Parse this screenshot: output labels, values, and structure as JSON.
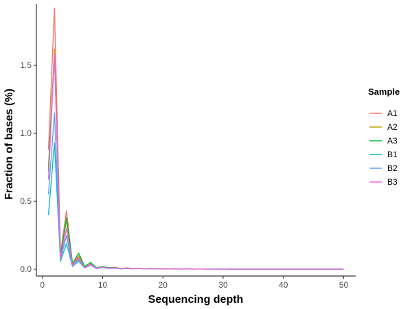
{
  "chart_data": {
    "type": "line",
    "xlabel": "Sequencing depth",
    "ylabel": "Fraction of bases (%)",
    "xlim": [
      -1,
      52
    ],
    "ylim": [
      -0.05,
      1.95
    ],
    "x_ticks": [
      0,
      10,
      20,
      30,
      40,
      50
    ],
    "y_ticks": [
      0.0,
      0.5,
      1.0,
      1.5
    ],
    "y_tick_labels": [
      "0.0",
      "0.5",
      "1.0",
      "1.5"
    ],
    "x_tick_labels": [
      "0",
      "10",
      "20",
      "30",
      "40",
      "50"
    ],
    "grid": false,
    "legend": {
      "title": "Sample",
      "position": "right"
    },
    "series": [
      {
        "name": "A1",
        "color": "#F8766D",
        "x": [
          1,
          2,
          3,
          4,
          5,
          6,
          7,
          8,
          9,
          10,
          11,
          12,
          13,
          14,
          15,
          16,
          17,
          18,
          19,
          20,
          21,
          22,
          23,
          24,
          25,
          26,
          27,
          28,
          29,
          30,
          31,
          32,
          33,
          34,
          35,
          36,
          37,
          38,
          39,
          40,
          41,
          42,
          43,
          44,
          45,
          46,
          47,
          48,
          49,
          50
        ],
        "y": [
          0.88,
          1.92,
          0.12,
          0.43,
          0.04,
          0.1,
          0.02,
          0.04,
          0.01,
          0.02,
          0.01,
          0.015,
          0.005,
          0.01,
          0.005,
          0.008,
          0.004,
          0.006,
          0.003,
          0.005,
          0.003,
          0.004,
          0.002,
          0.003,
          0.002,
          0.003,
          0.002,
          0.002,
          0.002,
          0.002,
          0.001,
          0.002,
          0.001,
          0.001,
          0.001,
          0.001,
          0.001,
          0.001,
          0.001,
          0.001,
          0.001,
          0.001,
          0.001,
          0.001,
          0.001,
          0.001,
          0.001,
          0.001,
          0.001,
          0.001
        ]
      },
      {
        "name": "A2",
        "color": "#B79F00",
        "x": [
          1,
          2,
          3,
          4,
          5,
          6,
          7,
          8,
          9,
          10,
          11,
          12,
          13,
          14,
          15,
          16,
          17,
          18,
          19,
          20,
          21,
          22,
          23,
          24,
          25,
          26,
          27,
          28,
          29,
          30,
          31,
          32,
          33,
          34,
          35,
          36,
          37,
          38,
          39,
          40,
          41,
          42,
          43,
          44,
          45,
          46,
          47,
          48,
          49,
          50
        ],
        "y": [
          0.75,
          1.62,
          0.1,
          0.36,
          0.03,
          0.09,
          0.015,
          0.035,
          0.008,
          0.018,
          0.008,
          0.012,
          0.004,
          0.008,
          0.004,
          0.007,
          0.003,
          0.005,
          0.003,
          0.004,
          0.002,
          0.003,
          0.002,
          0.003,
          0.002,
          0.002,
          0.002,
          0.002,
          0.001,
          0.002,
          0.001,
          0.001,
          0.001,
          0.001,
          0.001,
          0.001,
          0.001,
          0.001,
          0.001,
          0.001,
          0.001,
          0.001,
          0.001,
          0.001,
          0.001,
          0.001,
          0.001,
          0.001,
          0.001,
          0.001
        ]
      },
      {
        "name": "A3",
        "color": "#00BA38",
        "x": [
          1,
          2,
          3,
          4,
          5,
          6,
          7,
          8,
          9,
          10,
          11,
          12,
          13,
          14,
          15,
          16,
          17,
          18,
          19,
          20,
          21,
          22,
          23,
          24,
          25,
          26,
          27,
          28,
          29,
          30,
          31,
          32,
          33,
          34,
          35,
          36,
          37,
          38,
          39,
          40,
          41,
          42,
          43,
          44,
          45,
          46,
          47,
          48,
          49,
          50
        ],
        "y": [
          0.72,
          1.58,
          0.1,
          0.38,
          0.04,
          0.12,
          0.02,
          0.05,
          0.01,
          0.02,
          0.01,
          0.012,
          0.005,
          0.008,
          0.004,
          0.007,
          0.003,
          0.005,
          0.003,
          0.004,
          0.002,
          0.003,
          0.002,
          0.003,
          0.002,
          0.002,
          0.002,
          0.002,
          0.001,
          0.002,
          0.001,
          0.001,
          0.001,
          0.001,
          0.001,
          0.001,
          0.001,
          0.001,
          0.001,
          0.001,
          0.001,
          0.001,
          0.001,
          0.001,
          0.001,
          0.001,
          0.001,
          0.001,
          0.001,
          0.001
        ]
      },
      {
        "name": "B1",
        "color": "#00BFC4",
        "x": [
          1,
          2,
          3,
          4,
          5,
          6,
          7,
          8,
          9,
          10,
          11,
          12,
          13,
          14,
          15,
          16,
          17,
          18,
          19,
          20,
          21,
          22,
          23,
          24,
          25,
          26,
          27,
          28,
          29,
          30,
          31,
          32,
          33,
          34,
          35,
          36,
          37,
          38,
          39,
          40,
          41,
          42,
          43,
          44,
          45,
          46,
          47,
          48,
          49,
          50
        ],
        "y": [
          0.4,
          0.93,
          0.06,
          0.19,
          0.02,
          0.06,
          0.01,
          0.03,
          0.005,
          0.012,
          0.005,
          0.008,
          0.003,
          0.006,
          0.003,
          0.005,
          0.002,
          0.004,
          0.002,
          0.003,
          0.002,
          0.002,
          0.001,
          0.002,
          0.001,
          0.002,
          0.001,
          0.001,
          0.001,
          0.001,
          0.001,
          0.001,
          0.001,
          0.001,
          0.001,
          0.001,
          0.001,
          0.001,
          0.001,
          0.001,
          0.001,
          0.001,
          0.001,
          0.001,
          0.001,
          0.001,
          0.001,
          0.001,
          0.001,
          0.001
        ]
      },
      {
        "name": "B2",
        "color": "#619CFF",
        "x": [
          1,
          2,
          3,
          4,
          5,
          6,
          7,
          8,
          9,
          10,
          11,
          12,
          13,
          14,
          15,
          16,
          17,
          18,
          19,
          20,
          21,
          22,
          23,
          24,
          25,
          26,
          27,
          28,
          29,
          30,
          31,
          32,
          33,
          34,
          35,
          36,
          37,
          38,
          39,
          40,
          41,
          42,
          43,
          44,
          45,
          46,
          47,
          48,
          49,
          50
        ],
        "y": [
          0.55,
          1.15,
          0.07,
          0.25,
          0.02,
          0.07,
          0.01,
          0.03,
          0.006,
          0.014,
          0.006,
          0.009,
          0.003,
          0.006,
          0.003,
          0.005,
          0.002,
          0.004,
          0.002,
          0.003,
          0.002,
          0.002,
          0.001,
          0.002,
          0.001,
          0.002,
          0.001,
          0.001,
          0.001,
          0.001,
          0.001,
          0.001,
          0.001,
          0.001,
          0.001,
          0.001,
          0.001,
          0.001,
          0.001,
          0.001,
          0.001,
          0.001,
          0.001,
          0.001,
          0.001,
          0.001,
          0.001,
          0.001,
          0.001,
          0.001
        ]
      },
      {
        "name": "B3",
        "color": "#F564E3",
        "x": [
          1,
          2,
          3,
          4,
          5,
          6,
          7,
          8,
          9,
          10,
          11,
          12,
          13,
          14,
          15,
          16,
          17,
          18,
          19,
          20,
          21,
          22,
          23,
          24,
          25,
          26,
          27,
          28,
          29,
          30,
          31,
          32,
          33,
          34,
          35,
          36,
          37,
          38,
          39,
          40,
          41,
          42,
          43,
          44,
          45,
          46,
          47,
          48,
          49,
          50
        ],
        "y": [
          0.66,
          1.58,
          0.08,
          0.3,
          0.03,
          0.08,
          0.012,
          0.035,
          0.007,
          0.015,
          0.007,
          0.01,
          0.004,
          0.007,
          0.003,
          0.006,
          0.003,
          0.004,
          0.002,
          0.003,
          0.002,
          0.003,
          0.001,
          0.002,
          0.001,
          0.002,
          0.001,
          0.001,
          0.001,
          0.001,
          0.001,
          0.001,
          0.001,
          0.001,
          0.001,
          0.001,
          0.001,
          0.001,
          0.001,
          0.001,
          0.001,
          0.001,
          0.001,
          0.001,
          0.001,
          0.001,
          0.001,
          0.001,
          0.001,
          0.001
        ]
      }
    ]
  }
}
